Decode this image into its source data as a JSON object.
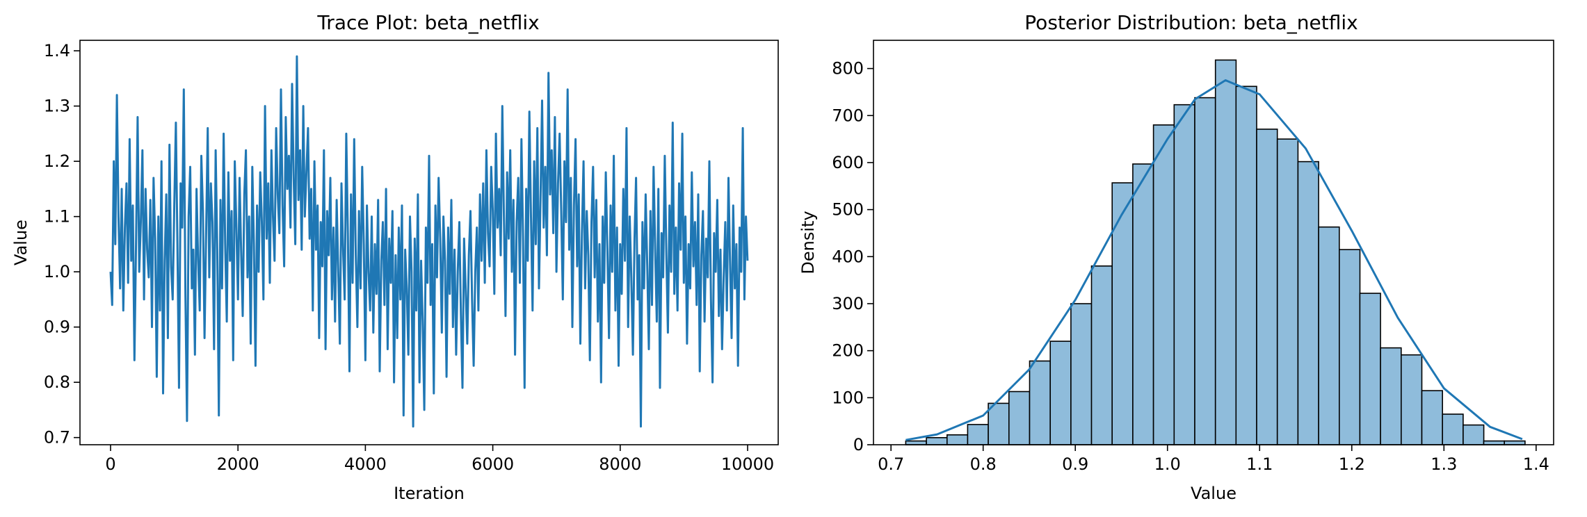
{
  "figure": {
    "colors": {
      "series": "#1f77b4",
      "hist_fill": "#8fbcdb",
      "hist_edge": "#000000",
      "axes": "#000000"
    }
  },
  "chart_data": [
    {
      "type": "line",
      "title": "Trace Plot: beta_netflix",
      "xlabel": "Iteration",
      "ylabel": "Value",
      "xlim": [
        -480,
        10480
      ],
      "ylim": [
        0.687,
        1.419
      ],
      "xticks": [
        0,
        2000,
        4000,
        6000,
        8000,
        10000
      ],
      "xtick_labels": [
        "0",
        "2000",
        "4000",
        "6000",
        "8000",
        "10000"
      ],
      "yticks": [
        0.7,
        0.8,
        0.9,
        1.0,
        1.1,
        1.2,
        1.3,
        1.4
      ],
      "ytick_labels": [
        "0.7",
        "0.8",
        "0.9",
        "1.0",
        "1.1",
        "1.2",
        "1.3",
        "1.4"
      ],
      "grid": false,
      "series": [
        {
          "n_iterations": 10000,
          "values": [
            1.0,
            0.94,
            1.2,
            1.05,
            1.32,
            1.1,
            0.97,
            1.15,
            0.93,
            1.08,
            1.16,
            0.98,
            1.24,
            1.02,
            1.12,
            0.84,
            1.05,
            1.28,
            1.0,
            1.09,
            1.22,
            0.95,
            1.15,
            1.04,
            0.99,
            1.13,
            0.9,
            1.17,
            1.06,
            0.81,
            1.1,
            0.93,
            1.2,
            0.78,
            1.02,
            1.14,
            0.88,
            1.23,
            1.01,
            0.95,
            1.12,
            1.27,
            1.05,
            0.79,
            1.16,
            1.08,
            1.33,
            0.96,
            0.73,
            1.1,
            1.19,
            0.97,
            1.04,
            0.85,
            1.15,
            1.02,
            0.93,
            1.21,
            1.11,
            0.88,
            1.07,
            1.26,
            0.99,
            1.16,
            1.09,
            0.86,
            1.22,
            1.04,
            0.74,
            1.13,
            0.97,
            1.25,
            1.05,
            0.91,
            1.18,
            1.02,
            1.11,
            0.84,
            1.2,
            1.08,
            0.95,
            1.17,
            1.04,
            0.92,
            1.14,
            1.22,
            0.99,
            1.1,
            0.87,
            1.19,
            1.05,
            0.83,
            1.12,
            1.0,
            1.18,
            1.09,
            0.95,
            1.3,
            1.06,
            1.16,
            0.98,
            1.22,
            1.1,
            1.02,
            1.26,
            1.14,
            1.07,
            1.33,
            1.12,
            1.01,
            1.28,
            1.15,
            1.21,
            1.08,
            1.34,
            1.17,
            1.05,
            1.39,
            1.13,
            1.22,
            1.04,
            1.3,
            1.1,
            1.18,
            1.26,
            1.06,
            1.15,
            0.93,
            1.2,
            1.04,
            1.12,
            0.88,
            1.09,
            1.01,
            1.22,
            0.86,
            1.11,
            1.03,
            1.17,
            0.95,
            1.08,
            0.91,
            1.13,
            1.0,
            0.87,
            1.16,
            1.04,
            0.95,
            1.25,
            1.07,
            0.82,
            1.14,
            0.98,
            1.24,
            1.03,
            0.9,
            1.11,
            0.97,
            1.19,
            1.05,
            0.84,
            1.12,
            1.0,
            0.93,
            1.1,
            0.89,
            1.05,
            0.96,
            1.13,
            0.82,
            1.02,
            1.09,
            0.94,
            1.15,
            0.86,
            1.06,
            0.98,
            1.11,
            0.8,
            1.03,
            0.88,
            1.08,
            0.95,
            1.12,
            0.74,
            1.04,
            0.97,
            0.85,
            1.1,
            1.0,
            0.72,
            1.06,
            0.93,
            1.14,
            0.8,
            1.02,
            0.91,
            0.75,
            1.08,
            0.98,
            1.21,
            0.94,
            1.05,
            0.78,
            1.12,
            0.99,
            1.17,
            1.06,
            0.89,
            1.1,
            1.02,
            0.81,
            1.08,
            0.96,
            1.13,
            0.9,
            1.04,
            0.85,
            1.0,
            1.09,
            0.92,
            0.79,
            1.06,
            0.97,
            0.87,
            1.03,
            1.11,
            0.95,
            0.83,
            1.0,
            1.08,
            0.93,
            1.14,
            1.02,
            1.16,
            0.98,
            1.22,
            1.07,
            1.01,
            1.19,
            1.11,
            0.96,
            1.25,
            1.08,
            1.15,
            1.03,
            1.3,
            1.1,
            0.92,
            1.18,
            1.06,
            1.22,
            1.0,
            1.13,
            0.85,
            1.09,
            1.17,
            0.98,
            1.24,
            1.06,
            0.79,
            1.15,
            1.02,
            1.29,
            1.1,
            0.93,
            1.2,
            1.05,
            1.26,
            0.97,
            1.13,
            1.31,
            1.08,
            1.19,
            1.03,
            1.36,
            1.14,
            1.22,
            1.07,
            1.28,
            1.0,
            1.16,
            1.25,
            1.11,
            0.95,
            1.2,
            1.09,
            1.33,
            1.04,
            1.17,
            0.9,
            1.12,
            1.24,
            1.01,
            1.14,
            0.87,
            1.07,
            1.2,
            0.97,
            1.11,
            1.03,
            0.84,
            1.09,
            1.19,
            0.99,
            1.13,
            0.91,
            1.05,
            0.8,
            1.1,
            0.98,
            1.18,
            1.04,
            0.88,
            1.12,
            1.0,
            1.21,
            0.93,
            1.08,
            0.83,
            1.05,
            0.96,
            1.15,
            1.02,
            1.26,
            0.9,
            1.1,
            0.99,
            0.85,
            1.06,
            1.17,
            0.95,
            1.03,
            0.72,
            1.09,
            0.97,
            1.14,
            1.01,
            0.86,
            1.11,
            0.94,
            1.19,
            1.04,
            0.91,
            1.15,
            0.79,
            1.07,
            0.99,
            1.21,
            1.03,
            0.89,
            1.12,
            1.0,
            1.27,
            0.96,
            1.08,
            0.93,
            1.16,
            1.04,
            1.25,
            0.98,
            1.1,
            0.87,
            1.05,
            0.97,
            1.18,
            1.01,
            1.09,
            0.94,
            1.14,
            0.82,
            1.03,
            1.11,
            0.91,
            1.06,
            0.99,
            1.2,
            0.95,
            0.8,
            1.07,
            1.0,
            1.13,
            0.92,
            1.04,
            0.86,
            0.99,
            1.09,
            0.93,
            1.17,
            1.02,
            0.88,
            1.12,
            0.97,
            1.05,
            0.83,
            1.08,
            1.0,
            1.26,
            0.95,
            1.1,
            1.02
          ]
        }
      ]
    },
    {
      "type": "histogram",
      "title": "Posterior Distribution: beta_netflix",
      "xlabel": "Value",
      "ylabel": "Density",
      "xlim": [
        0.681,
        1.419
      ],
      "ylim": [
        0,
        860
      ],
      "xticks": [
        0.7,
        0.8,
        0.9,
        1.0,
        1.1,
        1.2,
        1.3,
        1.4
      ],
      "xtick_labels": [
        "0.7",
        "0.8",
        "0.9",
        "1.0",
        "1.1",
        "1.2",
        "1.3",
        "1.4"
      ],
      "yticks": [
        0,
        100,
        200,
        300,
        400,
        500,
        600,
        700,
        800
      ],
      "ytick_labels": [
        "0",
        "100",
        "200",
        "300",
        "400",
        "500",
        "600",
        "700",
        "800"
      ],
      "grid": false,
      "bin_start": 0.716,
      "bin_width": 0.0224,
      "counts": [
        8,
        15,
        21,
        43,
        88,
        113,
        178,
        220,
        300,
        380,
        557,
        597,
        680,
        723,
        738,
        818,
        762,
        671,
        650,
        602,
        463,
        415,
        322,
        206,
        191,
        115,
        65,
        42,
        8,
        8
      ],
      "kde": {
        "x": [
          0.716,
          0.75,
          0.8,
          0.85,
          0.9,
          0.95,
          1.0,
          1.03,
          1.063,
          1.1,
          1.15,
          1.2,
          1.25,
          1.3,
          1.35,
          1.385
        ],
        "y": [
          10,
          22,
          62,
          160,
          308,
          488,
          650,
          735,
          775,
          745,
          630,
          455,
          270,
          120,
          38,
          12
        ]
      }
    }
  ]
}
